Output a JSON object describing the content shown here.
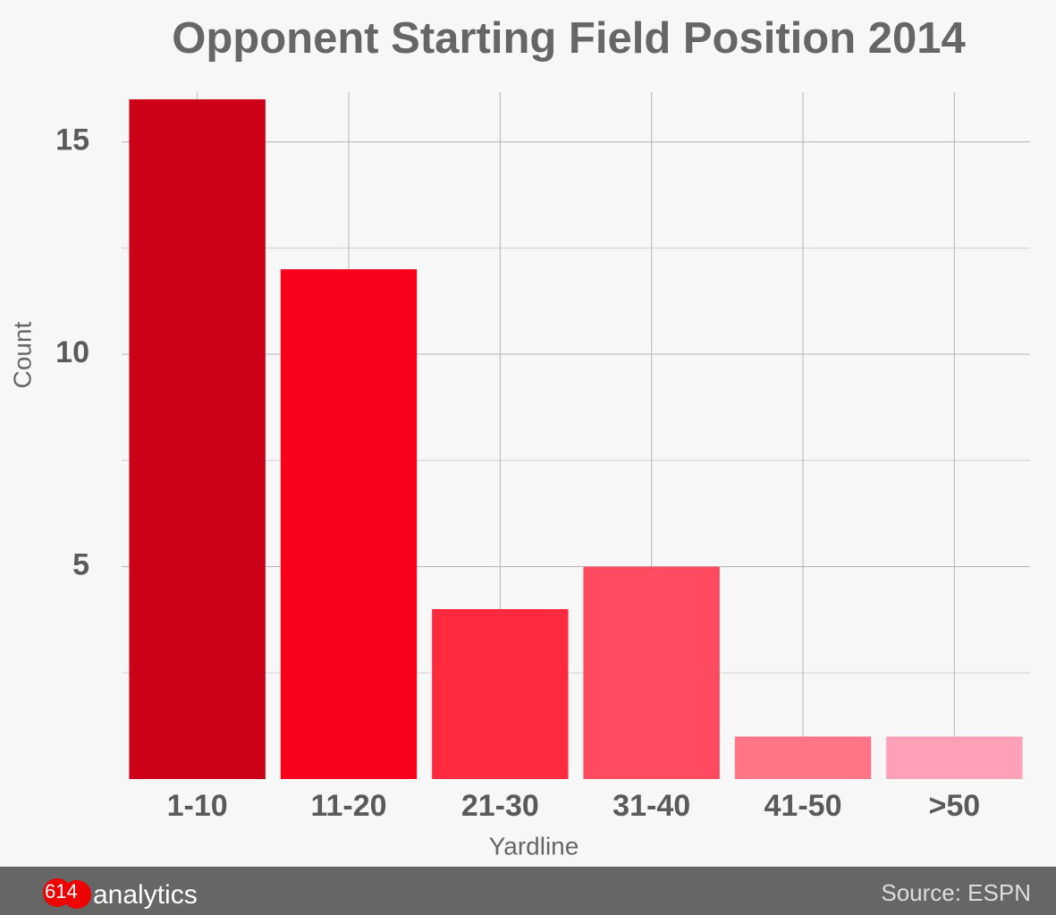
{
  "chart_data": {
    "type": "bar",
    "title": "Opponent Starting Field Position 2014",
    "x_label": "Yardline",
    "y_label": "Count",
    "categories": [
      "1-10",
      "11-20",
      "21-30",
      "31-40",
      "41-50",
      ">50"
    ],
    "values": [
      16,
      12,
      4,
      5,
      1,
      1
    ],
    "colors": [
      "#cc0016",
      "#f9001c",
      "#ff2a3e",
      "#ff4a5f",
      "#ff7585",
      "#ffa0b8"
    ],
    "ylim": [
      0,
      16.17
    ],
    "yticks": [
      5,
      10,
      15
    ],
    "grid": true
  },
  "footer": {
    "logo": "614",
    "brand": "analytics",
    "source": "Source: ESPN"
  }
}
